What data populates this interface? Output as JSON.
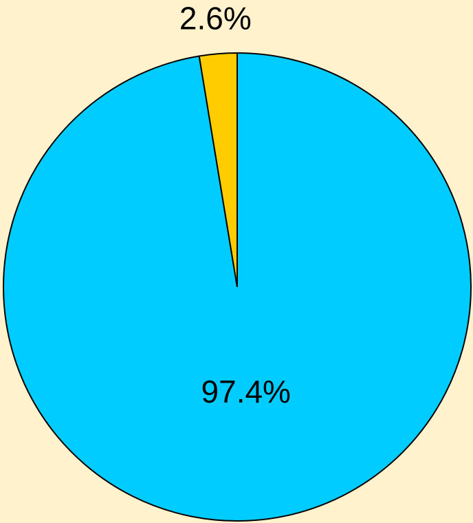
{
  "chart_data": {
    "type": "pie",
    "values": [
      97.4,
      2.6
    ],
    "value_labels": [
      "97.4%",
      "2.6%"
    ],
    "colors": [
      "#00ccff",
      "#ffcc00"
    ]
  }
}
